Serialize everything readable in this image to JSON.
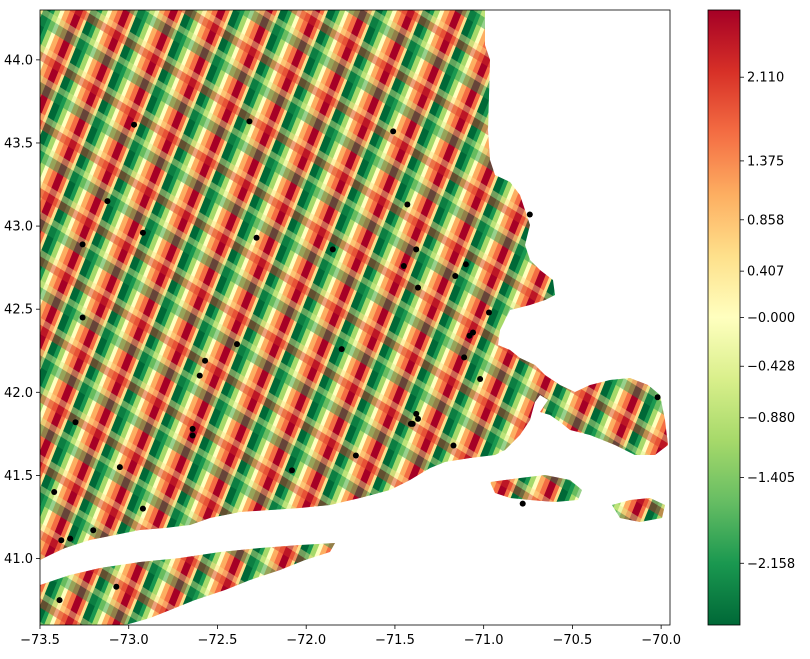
{
  "chart_data": {
    "type": "heatmap",
    "title": "",
    "xlabel": "",
    "ylabel": "",
    "xlim": [
      -73.5,
      -69.95
    ],
    "ylim": [
      40.6,
      44.3
    ],
    "x_ticks": [
      -73.5,
      -73.0,
      -72.5,
      -72.0,
      -71.5,
      -71.0,
      -70.5,
      -70.0
    ],
    "x_tick_labels": [
      "−73.5",
      "−73.0",
      "−72.5",
      "−72.0",
      "−71.5",
      "−71.0",
      "−70.5",
      "−70.0"
    ],
    "y_ticks": [
      41.0,
      41.5,
      42.0,
      42.5,
      43.0,
      43.5,
      44.0
    ],
    "y_tick_labels": [
      "41.0",
      "41.5",
      "42.0",
      "42.5",
      "43.0",
      "43.5",
      "44.0"
    ],
    "grid": false,
    "colormap": "RdYlGn_r",
    "colormap_colors": [
      "#006837",
      "#1a9850",
      "#66bd63",
      "#a6d96a",
      "#d9ef8b",
      "#ffffbf",
      "#fee08b",
      "#fdae61",
      "#f46d43",
      "#d73027",
      "#a50026"
    ],
    "colorbar": {
      "vmin": -2.7,
      "vmax": 2.7,
      "ticks": [
        2.11,
        1.375,
        0.858,
        0.407,
        0.0,
        -0.428,
        -0.88,
        -1.405,
        -2.158
      ],
      "tick_labels": [
        "2.110",
        "1.375",
        "0.858",
        "0.407",
        "−0.000",
        "−0.428",
        "−0.880",
        "−1.405",
        "−2.158"
      ]
    },
    "points": [
      {
        "x": -72.97,
        "y": 43.61
      },
      {
        "x": -72.32,
        "y": 43.63
      },
      {
        "x": -71.51,
        "y": 43.57
      },
      {
        "x": -73.12,
        "y": 43.15
      },
      {
        "x": -71.43,
        "y": 43.13
      },
      {
        "x": -70.74,
        "y": 43.07
      },
      {
        "x": -72.92,
        "y": 42.96
      },
      {
        "x": -72.28,
        "y": 42.93
      },
      {
        "x": -73.26,
        "y": 42.89
      },
      {
        "x": -71.85,
        "y": 42.86
      },
      {
        "x": -71.38,
        "y": 42.86
      },
      {
        "x": -71.45,
        "y": 42.76
      },
      {
        "x": -71.1,
        "y": 42.77
      },
      {
        "x": -71.16,
        "y": 42.7
      },
      {
        "x": -71.37,
        "y": 42.63
      },
      {
        "x": -73.26,
        "y": 42.45
      },
      {
        "x": -70.97,
        "y": 42.48
      },
      {
        "x": -71.06,
        "y": 42.36
      },
      {
        "x": -71.08,
        "y": 42.34
      },
      {
        "x": -72.39,
        "y": 42.29
      },
      {
        "x": -71.8,
        "y": 42.26
      },
      {
        "x": -71.11,
        "y": 42.21
      },
      {
        "x": -72.57,
        "y": 42.19
      },
      {
        "x": -72.6,
        "y": 42.1
      },
      {
        "x": -71.02,
        "y": 42.08
      },
      {
        "x": -70.02,
        "y": 41.97
      },
      {
        "x": -71.38,
        "y": 41.87
      },
      {
        "x": -71.37,
        "y": 41.84
      },
      {
        "x": -73.3,
        "y": 41.82
      },
      {
        "x": -71.41,
        "y": 41.81
      },
      {
        "x": -71.4,
        "y": 41.81
      },
      {
        "x": -72.64,
        "y": 41.78
      },
      {
        "x": -72.64,
        "y": 41.74
      },
      {
        "x": -71.17,
        "y": 41.68
      },
      {
        "x": -71.72,
        "y": 41.62
      },
      {
        "x": -73.05,
        "y": 41.55
      },
      {
        "x": -72.08,
        "y": 41.53
      },
      {
        "x": -73.42,
        "y": 41.4
      },
      {
        "x": -70.78,
        "y": 41.33
      },
      {
        "x": -72.92,
        "y": 41.3
      },
      {
        "x": -73.2,
        "y": 41.17
      },
      {
        "x": -73.33,
        "y": 41.12
      },
      {
        "x": -73.38,
        "y": 41.11
      },
      {
        "x": -73.07,
        "y": 40.83
      },
      {
        "x": -73.39,
        "y": 40.75
      }
    ]
  }
}
